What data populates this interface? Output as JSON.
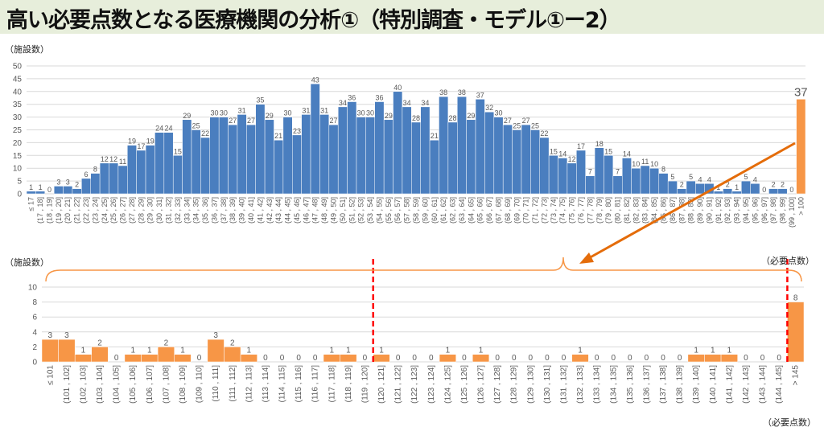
{
  "title": "高い必要点数となる医療機関の分析①（特別調査・モデル①ー2）",
  "colors": {
    "blue": "#4a7ebf",
    "orange": "#f79646",
    "arrow": "#e46c0a",
    "dashed": "#ff0000",
    "title_bg": "#e7eedb"
  },
  "chart_data": [
    {
      "type": "bar",
      "ylabel": "（施設数）",
      "ylim": [
        0,
        50
      ],
      "yticks": [
        0,
        5,
        10,
        15,
        20,
        25,
        30,
        35,
        40,
        45,
        50
      ],
      "grid": true,
      "categories": [
        "≤ 17",
        "(17 , 18]",
        "(18 , 19]",
        "(19 , 20]",
        "(20 , 21]",
        "(21 , 22]",
        "(22 , 23]",
        "(23 , 24]",
        "(24 , 25]",
        "(25 , 26]",
        "(26 , 27]",
        "(27 , 28]",
        "(28 , 29]",
        "(29 , 30]",
        "(30 , 31]",
        "(31 , 32]",
        "(32 , 33]",
        "(33 , 34]",
        "(34 , 35]",
        "(35 , 36]",
        "(36 , 37]",
        "(37 , 38]",
        "(38 , 39]",
        "(39 , 40]",
        "(40 , 41]",
        "(41 , 42]",
        "(42 , 43]",
        "(43 , 44]",
        "(44 , 45]",
        "(45 , 46]",
        "(46 , 47]",
        "(47 , 48]",
        "(48 , 49]",
        "(49 , 50]",
        "(50 , 51]",
        "(51 , 52]",
        "(52 , 53]",
        "(53 , 54]",
        "(54 , 55]",
        "(55 , 56]",
        "(56 , 57]",
        "(57 , 58]",
        "(58 , 59]",
        "(59 , 60]",
        "(60 , 61]",
        "(61 , 62]",
        "(62 , 63]",
        "(63 , 64]",
        "(64 , 65]",
        "(65 , 66]",
        "(66 , 67]",
        "(67 , 68]",
        "(68 , 69]",
        "(69 , 70]",
        "(70 , 71]",
        "(71 , 72]",
        "(72 , 73]",
        "(73 , 74]",
        "(74 , 75]",
        "(75 , 76]",
        "(76 , 77]",
        "(77 , 78]",
        "(78 , 79]",
        "(79 , 80]",
        "(80 , 81]",
        "(81 , 82]",
        "(82 , 83]",
        "(83 , 84]",
        "(84 , 85]",
        "(85 , 86]",
        "(86 , 87]",
        "(87 , 88]",
        "(88 , 89]",
        "(89 , 90]",
        "(90 , 91]",
        "(91 , 92]",
        "(92 , 93]",
        "(93 , 94]",
        "(94 , 95]",
        "(95 , 96]",
        "(96 , 97]",
        "(97 , 98]",
        "(98 , 99]",
        "(99 , 100]",
        "> 100"
      ],
      "values": [
        1,
        1,
        0,
        3,
        3,
        2,
        6,
        8,
        12,
        12,
        11,
        19,
        17,
        19,
        24,
        24,
        15,
        29,
        25,
        22,
        30,
        30,
        27,
        31,
        27,
        35,
        29,
        21,
        30,
        23,
        31,
        43,
        31,
        27,
        34,
        36,
        30,
        30,
        36,
        29,
        40,
        34,
        28,
        34,
        21,
        38,
        28,
        38,
        29,
        37,
        32,
        30,
        27,
        25,
        27,
        25,
        22,
        15,
        14,
        12,
        17,
        7,
        18,
        15,
        7,
        14,
        10,
        11,
        10,
        8,
        5,
        2,
        5,
        4,
        4,
        1,
        2,
        1,
        5,
        4,
        0,
        2,
        2,
        0,
        37
      ],
      "highlight_last": true
    },
    {
      "type": "bar",
      "ylabel": "（施設数）",
      "xlabel": "（必要点数）",
      "ylim": [
        0,
        10
      ],
      "yticks": [
        0,
        2,
        4,
        6,
        8,
        10
      ],
      "grid": true,
      "categories": [
        "≤ 101",
        "(101 , 102]",
        "(102 , 103]",
        "(103 , 104]",
        "(104 , 105]",
        "(105 , 106]",
        "(106 , 107]",
        "(107 , 108]",
        "(108 , 109]",
        "(109 , 110]",
        "(110 , 111]",
        "(111 , 112]",
        "(112 , 113]",
        "(113 , 114]",
        "(114 , 115]",
        "(115 , 116]",
        "(116 , 117]",
        "(117 , 118]",
        "(118 , 119]",
        "(119 , 120]",
        "(120 , 121]",
        "(121 , 122]",
        "(122 , 123]",
        "(123 , 124]",
        "(124 , 125]",
        "(125 , 126]",
        "(126 , 127]",
        "(127 , 128]",
        "(128 , 129]",
        "(129 , 130]",
        "(130 , 131]",
        "(131 , 132]",
        "(132 , 133]",
        "(133 , 134]",
        "(134 , 135]",
        "(135 , 136]",
        "(136 , 137]",
        "(137 , 138]",
        "(138 , 139]",
        "(139 , 140]",
        "(140 , 141]",
        "(141 , 142]",
        "(142 , 143]",
        "(143 , 144]",
        "(144 , 145]",
        "> 145"
      ],
      "values": [
        3,
        3,
        1,
        2,
        0,
        1,
        1,
        2,
        1,
        0,
        3,
        2,
        1,
        0,
        0,
        0,
        0,
        1,
        1,
        0,
        1,
        0,
        0,
        0,
        1,
        0,
        1,
        0,
        0,
        0,
        0,
        0,
        1,
        0,
        0,
        0,
        0,
        0,
        0,
        1,
        1,
        1,
        0,
        0,
        0,
        8
      ],
      "dashed_lines_after": [
        "(119 , 120]",
        "(144 , 145]"
      ]
    }
  ],
  "labels": {
    "top_ylabel": "（施設数）",
    "bottom_ylabel": "（施設数）",
    "bottom_right_top": "（必要点数）",
    "bottom_right_bottom": "（必要点数）"
  }
}
